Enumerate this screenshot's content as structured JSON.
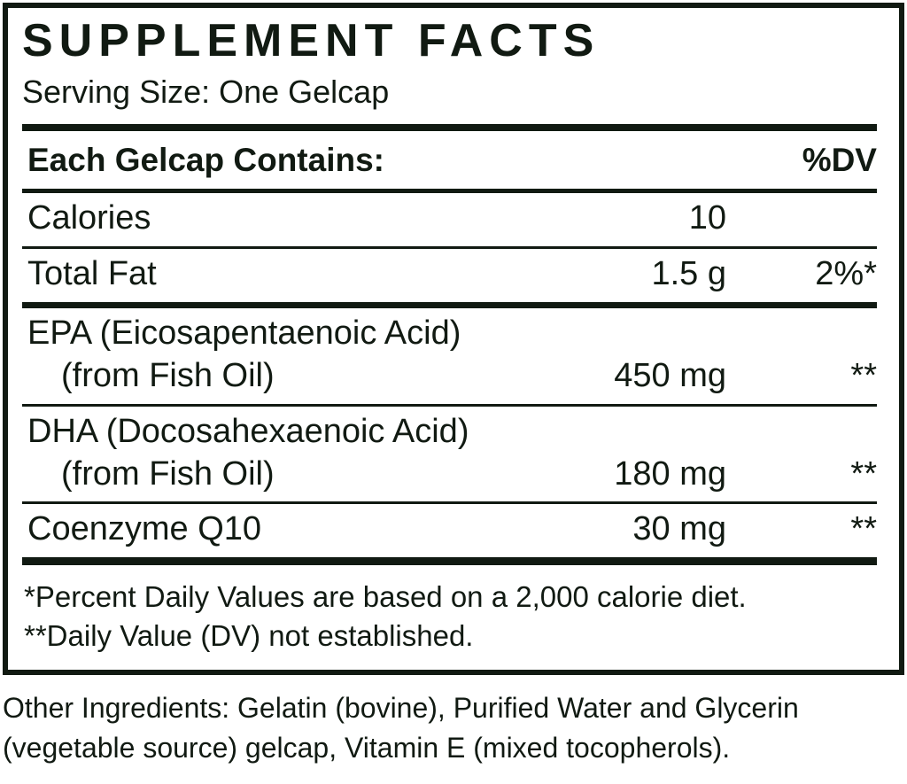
{
  "panel": {
    "title": "SUPPLEMENT FACTS",
    "serving_size": "Serving Size: One Gelcap",
    "header": {
      "left": "Each Gelcap Contains:",
      "right": "%DV"
    },
    "rows": [
      {
        "name": "Calories",
        "amount": "10",
        "dv": ""
      },
      {
        "name": "Total Fat",
        "amount": "1.5 g",
        "dv": "2%*"
      },
      {
        "name": "EPA (Eicosapentaenoic Acid)",
        "sub": "(from Fish Oil)",
        "amount": "450 mg",
        "dv": "**"
      },
      {
        "name": "DHA (Docosahexaenoic Acid)",
        "sub": "(from Fish Oil)",
        "amount": "180 mg",
        "dv": "**"
      },
      {
        "name": "Coenzyme Q10",
        "amount": "30 mg",
        "dv": "**"
      }
    ],
    "footnotes": [
      "*Percent Daily Values are based on a 2,000 calorie diet.",
      "**Daily Value (DV) not established."
    ]
  },
  "other_ingredients": {
    "line1": "Other Ingredients: Gelatin (bovine), Purified Water and Glycerin",
    "line2": "(vegetable source) gelcap, Vitamin E (mixed tocopherols)."
  },
  "colors": {
    "ink": "#111a12",
    "background": "#ffffff"
  }
}
